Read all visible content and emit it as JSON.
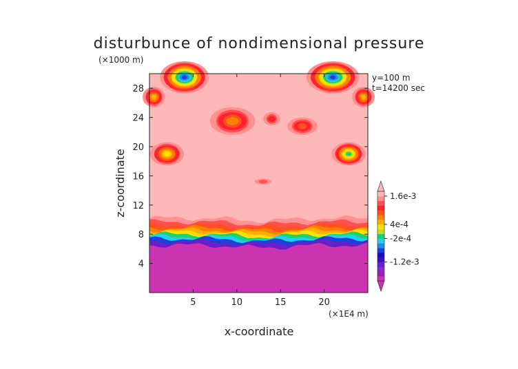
{
  "chart_data": {
    "type": "heatmap",
    "title": "disturbunce of nondimensional pressure",
    "z_scale_label": "(×1000 m)",
    "x_scale_label": "(×1E4 m)",
    "xlabel": "x-coordinate",
    "ylabel": "z-coordinate",
    "annotations": [
      "y=100 m",
      "t=14200 sec"
    ],
    "xlim": [
      0,
      25
    ],
    "ylim": [
      0,
      30
    ],
    "x_ticks": [
      5,
      10,
      15,
      20
    ],
    "y_ticks": [
      4,
      8,
      12,
      16,
      20,
      24,
      28
    ],
    "colorbar": {
      "labels": [
        "1.6e-3",
        "4e-4",
        "-2e-4",
        "-1.2e-3"
      ],
      "label_values": [
        0.0016,
        0.0004,
        -0.0002,
        -0.0012
      ],
      "levels": [
        -0.002,
        -0.0018,
        -0.0016,
        -0.0014,
        -0.0012,
        -0.001,
        -0.0008,
        -0.0006,
        -0.0004,
        -0.0002,
        0,
        0.0002,
        0.0004,
        0.0006,
        0.0008,
        0.001,
        0.0012,
        0.0014,
        0.0016
      ],
      "colors": [
        "#cc33b0",
        "#9f1fb0",
        "#8a2bd0",
        "#6a20c8",
        "#3a10c0",
        "#1a10b8",
        "#1f3fd8",
        "#1f90f0",
        "#1fd0f0",
        "#20d070",
        "#c0e020",
        "#ffe000",
        "#ffb000",
        "#ff8000",
        "#ff5020",
        "#ff2030",
        "#ff5050",
        "#ff9090",
        "#ffb8b8"
      ]
    },
    "field": {
      "background_value": 0.0016,
      "layers": [
        {
          "z_top": 6.5,
          "value": -0.002
        },
        {
          "z_top": 7.0,
          "value": -0.0014
        },
        {
          "z_top": 7.4,
          "value": -0.0008
        },
        {
          "z_top": 7.7,
          "value": -0.0004
        },
        {
          "z_top": 8.0,
          "value": -0.0001
        },
        {
          "z_top": 8.3,
          "value": 0.0002
        },
        {
          "z_top": 8.6,
          "value": 0.0004
        },
        {
          "z_top": 8.9,
          "value": 0.0006
        },
        {
          "z_top": 9.3,
          "value": 0.0009
        },
        {
          "z_top": 9.7,
          "value": 0.0012
        },
        {
          "z_top": 10.2,
          "value": 0.0014
        }
      ],
      "blobs": [
        {
          "x": 4.0,
          "z": 29.5,
          "rx": 2.6,
          "rz": 2.2,
          "peak": -0.0008
        },
        {
          "x": 21.0,
          "z": 29.5,
          "rx": 2.8,
          "rz": 2.2,
          "peak": -0.0008
        },
        {
          "x": 2.0,
          "z": 19.0,
          "rx": 1.8,
          "rz": 1.6,
          "peak": 0.0002
        },
        {
          "x": 22.8,
          "z": 19.0,
          "rx": 1.8,
          "rz": 1.6,
          "peak": -0.0002
        },
        {
          "x": 9.5,
          "z": 23.5,
          "rx": 2.4,
          "rz": 1.9,
          "peak": 0.0006
        },
        {
          "x": 17.5,
          "z": 22.8,
          "rx": 1.6,
          "rz": 1.2,
          "peak": 0.0008
        },
        {
          "x": 14.0,
          "z": 23.8,
          "rx": 0.9,
          "rz": 0.9,
          "peak": 0.001
        },
        {
          "x": 0.5,
          "z": 26.8,
          "rx": 1.2,
          "rz": 1.4,
          "peak": 0.0004
        },
        {
          "x": 24.5,
          "z": 26.8,
          "rx": 1.2,
          "rz": 1.4,
          "peak": 0.0004
        },
        {
          "x": 13.0,
          "z": 15.2,
          "rx": 0.9,
          "rz": 0.4,
          "peak": 0.0012
        }
      ]
    }
  }
}
